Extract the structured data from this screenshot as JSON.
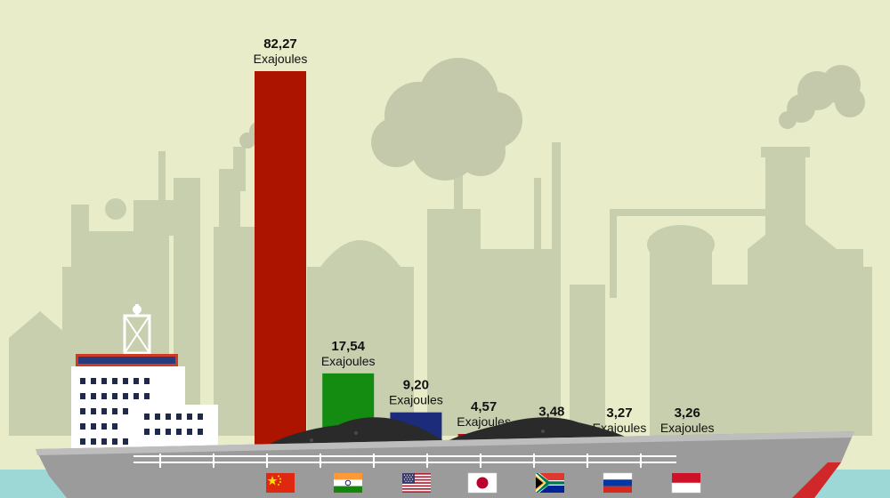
{
  "chart_data": {
    "type": "bar",
    "categories": [
      "China",
      "India",
      "United States",
      "Japan",
      "South Africa",
      "Russia",
      "Indonesia"
    ],
    "values": [
      82.27,
      17.54,
      9.2,
      4.57,
      3.48,
      3.27,
      3.26
    ],
    "value_labels": [
      "82,27",
      "17,54",
      "9,20",
      "4,57",
      "3,48",
      "3,27",
      "3,26"
    ],
    "unit": "Exajoules",
    "bar_colors": [
      "#ad1400",
      "#148c12",
      "#1c2c7a",
      "#be0a0a",
      "#e6262a",
      "#0b34b4",
      "#e42310"
    ],
    "flag_icons": [
      "china-flag-icon",
      "india-flag-icon",
      "usa-flag-icon",
      "japan-flag-icon",
      "south-africa-flag-icon",
      "russia-flag-icon",
      "indonesia-flag-icon"
    ],
    "ylim": [
      0,
      82.27
    ]
  },
  "colors": {
    "background": "#e9ecc8",
    "factory": "#c8cfae",
    "smoke": "#c3c9aa",
    "hull": "#9b9b9b",
    "deck": "#bdbdbd",
    "coal": "#2a2a2a",
    "sea": "#9ed8d6"
  }
}
